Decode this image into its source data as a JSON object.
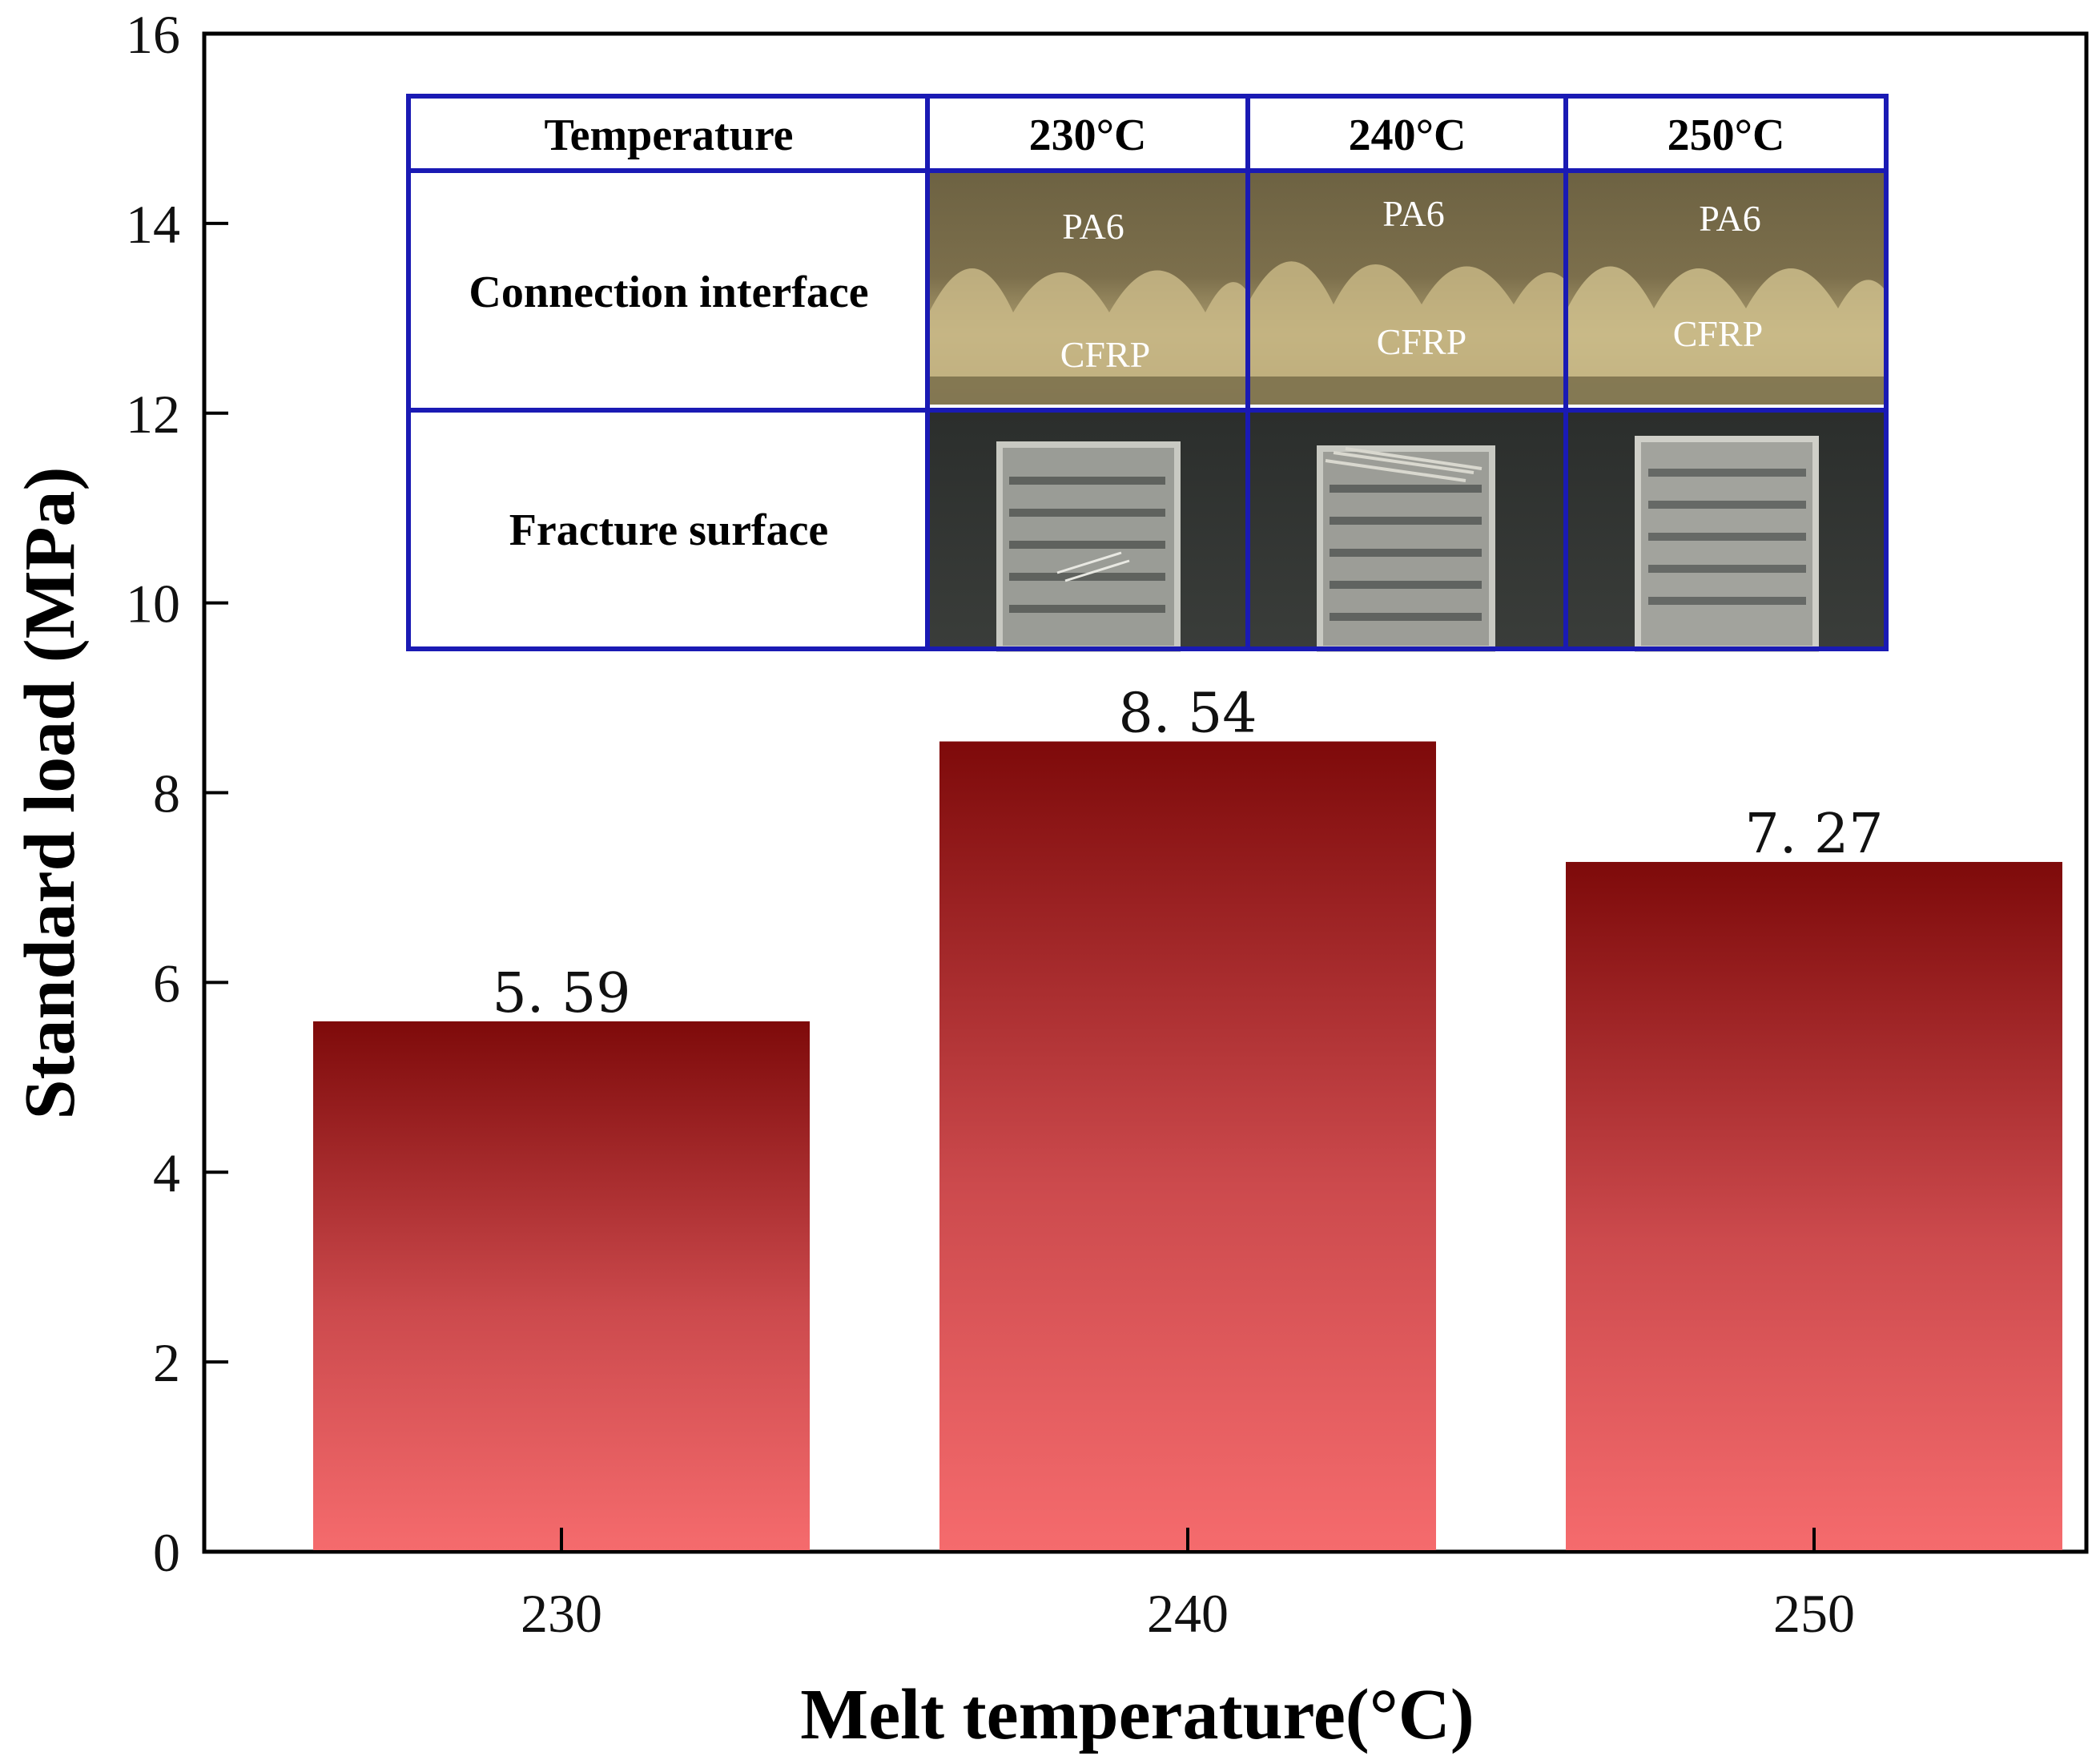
{
  "chart_data": {
    "type": "bar",
    "title": "",
    "xlabel": "Melt temperature(°C)",
    "ylabel": "Standard load (MPa)",
    "categories": [
      "230",
      "240",
      "250"
    ],
    "values": [
      5.59,
      8.54,
      7.27
    ],
    "value_labels": [
      "5. 59",
      "8. 54",
      "7. 27"
    ],
    "ylim": [
      0,
      16
    ],
    "yticks": [
      0,
      2,
      4,
      6,
      8,
      10,
      12,
      14,
      16
    ],
    "ytick_labels": [
      "0",
      "2",
      "4",
      "6",
      "8",
      "10",
      "12",
      "14",
      "16"
    ],
    "grid": false,
    "bar_gradient": {
      "top": "#7e0a0a",
      "bottom": "#f56b6d"
    }
  },
  "inset_table": {
    "border_color": "#1a1ab4",
    "header": [
      "Temperature",
      "230°C",
      "240°C",
      "250°C"
    ],
    "rows": [
      {
        "label": "Connection interface",
        "image_labels": [
          [
            "PA6",
            "CFRP"
          ],
          [
            "PA6",
            "CFRP"
          ],
          [
            "PA6",
            "CFRP"
          ]
        ]
      },
      {
        "label": "Fracture surface",
        "image_labels": [
          [],
          [],
          []
        ]
      }
    ]
  }
}
